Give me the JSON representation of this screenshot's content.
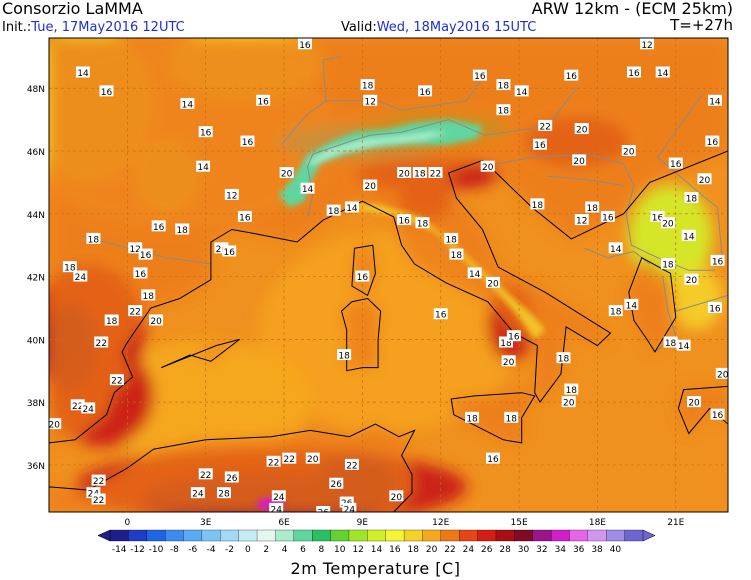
{
  "header": {
    "title": "Consorzio LaMMA",
    "model": "ARW 12km - (ECM 25km)",
    "init_label": "Init.:",
    "init_value": "Tue, 17May2016 12UTC",
    "valid_label": "Valid:",
    "valid_value": "Wed, 18May2016 15UTC",
    "lead": "T=+27h"
  },
  "axes": {
    "lat_labels": [
      "48N",
      "46N",
      "44N",
      "42N",
      "40N",
      "38N",
      "36N"
    ],
    "lon_labels": [
      "0",
      "3E",
      "6E",
      "9E",
      "12E",
      "15E",
      "18E",
      "21E"
    ]
  },
  "colorbar": {
    "title": "2m Temperature [C]",
    "ticks": [
      "-14",
      "-12",
      "-10",
      "-8",
      "-6",
      "-4",
      "-2",
      "0",
      "2",
      "4",
      "6",
      "8",
      "10",
      "12",
      "14",
      "16",
      "18",
      "20",
      "22",
      "24",
      "26",
      "28",
      "30",
      "32",
      "34",
      "36",
      "38",
      "40"
    ],
    "colors": [
      "#1e1e8c",
      "#1e3cc8",
      "#1e64e6",
      "#3c8cf0",
      "#5aaaf5",
      "#7cc3f7",
      "#a2d8f8",
      "#c6ebf5",
      "#e4f6ef",
      "#aaeccc",
      "#5fd6a0",
      "#28c060",
      "#64d232",
      "#a0e628",
      "#d2f028",
      "#f5f532",
      "#f5d228",
      "#f5aa1e",
      "#f07814",
      "#e64614",
      "#d21e14",
      "#aa0f14",
      "#820a28",
      "#9b148c",
      "#d21ec8",
      "#e664e6",
      "#d296f0",
      "#a08ce6",
      "#6e64d2"
    ],
    "value_range": [
      -14,
      40
    ]
  },
  "map": {
    "lon_range": [
      -3,
      23
    ],
    "lat_range": [
      34.5,
      49.6
    ],
    "colors": {
      "land_base": "#ec7a1a",
      "sea_base": "#f0901e",
      "alps_cold": "#aaeccc",
      "hot_core": "#c81414",
      "very_hot": "#8c0a32",
      "peak": "#d21ec8",
      "coast": "#000000",
      "border": "#8a8a8a",
      "grid": "#c07010"
    },
    "temperature_labels": [
      {
        "value": "16",
        "lon": 6.8,
        "lat": 49.4
      },
      {
        "value": "14",
        "lon": -1.7,
        "lat": 48.5
      },
      {
        "value": "16",
        "lon": -0.8,
        "lat": 47.9
      },
      {
        "value": "14",
        "lon": 2.3,
        "lat": 47.5
      },
      {
        "value": "16",
        "lon": 5.2,
        "lat": 47.6
      },
      {
        "value": "16",
        "lon": 3.0,
        "lat": 46.6
      },
      {
        "value": "16",
        "lon": 4.6,
        "lat": 46.3
      },
      {
        "value": "14",
        "lon": 2.9,
        "lat": 45.5
      },
      {
        "value": "20",
        "lon": 6.1,
        "lat": 45.3
      },
      {
        "value": "14",
        "lon": 6.9,
        "lat": 44.8
      },
      {
        "value": "12",
        "lon": 4.0,
        "lat": 44.6
      },
      {
        "value": "16",
        "lon": 4.5,
        "lat": 43.9
      },
      {
        "value": "16",
        "lon": 1.2,
        "lat": 43.6
      },
      {
        "value": "18",
        "lon": 2.1,
        "lat": 43.5
      },
      {
        "value": "18",
        "lon": -1.3,
        "lat": 43.2
      },
      {
        "value": "20",
        "lon": 3.6,
        "lat": 42.9
      },
      {
        "value": "16",
        "lon": 3.9,
        "lat": 42.8
      },
      {
        "value": "12",
        "lon": 0.3,
        "lat": 42.9
      },
      {
        "value": "16",
        "lon": 0.7,
        "lat": 42.7
      },
      {
        "value": "16",
        "lon": 0.5,
        "lat": 42.1
      },
      {
        "value": "24",
        "lon": -1.8,
        "lat": 42.0
      },
      {
        "value": "18",
        "lon": -2.2,
        "lat": 42.3
      },
      {
        "value": "18",
        "lon": 0.8,
        "lat": 41.4
      },
      {
        "value": "18",
        "lon": -0.6,
        "lat": 40.6
      },
      {
        "value": "22",
        "lon": 0.3,
        "lat": 40.9
      },
      {
        "value": "20",
        "lon": 1.1,
        "lat": 40.6
      },
      {
        "value": "22",
        "lon": -1.0,
        "lat": 39.9
      },
      {
        "value": "22",
        "lon": -0.4,
        "lat": 38.7
      },
      {
        "value": "22",
        "lon": -1.9,
        "lat": 37.9
      },
      {
        "value": "24",
        "lon": -1.5,
        "lat": 37.8
      },
      {
        "value": "20",
        "lon": -2.8,
        "lat": 37.3
      },
      {
        "value": "18",
        "lon": 9.2,
        "lat": 48.1
      },
      {
        "value": "12",
        "lon": 9.3,
        "lat": 47.6
      },
      {
        "value": "16",
        "lon": 11.4,
        "lat": 47.9
      },
      {
        "value": "16",
        "lon": 13.5,
        "lat": 48.4
      },
      {
        "value": "18",
        "lon": 14.4,
        "lat": 48.1
      },
      {
        "value": "16",
        "lon": 17.0,
        "lat": 48.4
      },
      {
        "value": "18",
        "lon": 14.4,
        "lat": 47.3
      },
      {
        "value": "14",
        "lon": 15.1,
        "lat": 47.9
      },
      {
        "value": "20",
        "lon": 17.4,
        "lat": 46.7
      },
      {
        "value": "20",
        "lon": 17.3,
        "lat": 45.7
      },
      {
        "value": "16",
        "lon": 15.8,
        "lat": 46.2
      },
      {
        "value": "20",
        "lon": 9.3,
        "lat": 44.9
      },
      {
        "value": "22",
        "lon": 11.8,
        "lat": 45.3
      },
      {
        "value": "18",
        "lon": 11.2,
        "lat": 45.3
      },
      {
        "value": "20",
        "lon": 10.6,
        "lat": 45.3
      },
      {
        "value": "18",
        "lon": 7.9,
        "lat": 44.1
      },
      {
        "value": "14",
        "lon": 8.6,
        "lat": 44.2
      },
      {
        "value": "16",
        "lon": 10.6,
        "lat": 43.8
      },
      {
        "value": "18",
        "lon": 11.3,
        "lat": 43.7
      },
      {
        "value": "18",
        "lon": 12.4,
        "lat": 43.2
      },
      {
        "value": "18",
        "lon": 12.6,
        "lat": 42.7
      },
      {
        "value": "16",
        "lon": 9.0,
        "lat": 42.0
      },
      {
        "value": "14",
        "lon": 13.3,
        "lat": 42.1
      },
      {
        "value": "16",
        "lon": 12.0,
        "lat": 40.8
      },
      {
        "value": "20",
        "lon": 14.0,
        "lat": 41.8
      },
      {
        "value": "18",
        "lon": 15.7,
        "lat": 44.3
      },
      {
        "value": "12",
        "lon": 17.4,
        "lat": 43.8
      },
      {
        "value": "18",
        "lon": 17.8,
        "lat": 44.2
      },
      {
        "value": "16",
        "lon": 18.4,
        "lat": 43.9
      },
      {
        "value": "14",
        "lon": 18.7,
        "lat": 42.9
      },
      {
        "value": "16",
        "lon": 20.3,
        "lat": 43.9
      },
      {
        "value": "14",
        "lon": 21.5,
        "lat": 43.3
      },
      {
        "value": "18",
        "lon": 20.7,
        "lat": 42.4
      },
      {
        "value": "16",
        "lon": 22.6,
        "lat": 42.5
      },
      {
        "value": "14",
        "lon": 19.3,
        "lat": 41.1
      },
      {
        "value": "20",
        "lon": 21.6,
        "lat": 41.9
      },
      {
        "value": "18",
        "lon": 18.7,
        "lat": 40.9
      },
      {
        "value": "20",
        "lon": 22.8,
        "lat": 38.9
      },
      {
        "value": "16",
        "lon": 22.5,
        "lat": 41.0
      },
      {
        "value": "18",
        "lon": 20.8,
        "lat": 39.9
      },
      {
        "value": "14",
        "lon": 21.3,
        "lat": 39.8
      },
      {
        "value": "20",
        "lon": 21.7,
        "lat": 38.0
      },
      {
        "value": "16",
        "lon": 22.6,
        "lat": 37.6
      },
      {
        "value": "18",
        "lon": 16.7,
        "lat": 39.4
      },
      {
        "value": "18",
        "lon": 17.0,
        "lat": 38.4
      },
      {
        "value": "20",
        "lon": 14.6,
        "lat": 39.3
      },
      {
        "value": "18",
        "lon": 14.7,
        "lat": 37.5
      },
      {
        "value": "20",
        "lon": 16.9,
        "lat": 38.0
      },
      {
        "value": "18",
        "lon": 14.5,
        "lat": 39.9
      },
      {
        "value": "16",
        "lon": 14.8,
        "lat": 40.1
      },
      {
        "value": "18",
        "lon": 8.3,
        "lat": 39.5
      },
      {
        "value": "18",
        "lon": 13.2,
        "lat": 37.5
      },
      {
        "value": "16",
        "lon": 14.0,
        "lat": 36.2
      },
      {
        "value": "22",
        "lon": 5.6,
        "lat": 36.1
      },
      {
        "value": "22",
        "lon": 6.2,
        "lat": 36.2
      },
      {
        "value": "20",
        "lon": 7.1,
        "lat": 36.2
      },
      {
        "value": "22",
        "lon": 8.6,
        "lat": 36.0
      },
      {
        "value": "26",
        "lon": 4.0,
        "lat": 35.6
      },
      {
        "value": "22",
        "lon": 3.0,
        "lat": 35.7
      },
      {
        "value": "24",
        "lon": 2.7,
        "lat": 35.1
      },
      {
        "value": "28",
        "lon": 3.7,
        "lat": 35.1
      },
      {
        "value": "24",
        "lon": 5.8,
        "lat": 35.0
      },
      {
        "value": "26",
        "lon": 8.0,
        "lat": 35.4
      },
      {
        "value": "26",
        "lon": 8.4,
        "lat": 34.8
      },
      {
        "value": "24",
        "lon": 8.5,
        "lat": 34.6
      },
      {
        "value": "22",
        "lon": -1.1,
        "lat": 35.5
      },
      {
        "value": "24",
        "lon": -1.3,
        "lat": 35.1
      },
      {
        "value": "22",
        "lon": -1.1,
        "lat": 34.9
      },
      {
        "value": "20",
        "lon": 10.3,
        "lat": 35.0
      },
      {
        "value": "24",
        "lon": 5.7,
        "lat": 34.6
      },
      {
        "value": "26",
        "lon": 7.5,
        "lat": 34.5
      },
      {
        "value": "12",
        "lon": 19.9,
        "lat": 49.4
      },
      {
        "value": "16",
        "lon": 19.4,
        "lat": 48.5
      },
      {
        "value": "14",
        "lon": 20.5,
        "lat": 48.5
      },
      {
        "value": "20",
        "lon": 20.7,
        "lat": 43.7
      },
      {
        "value": "14",
        "lon": 22.5,
        "lat": 47.6
      },
      {
        "value": "16",
        "lon": 22.4,
        "lat": 46.3
      },
      {
        "value": "20",
        "lon": 22.1,
        "lat": 45.1
      },
      {
        "value": "18",
        "lon": 21.6,
        "lat": 44.5
      },
      {
        "value": "16",
        "lon": 21.0,
        "lat": 45.6
      },
      {
        "value": "20",
        "lon": 19.2,
        "lat": 46.0
      },
      {
        "value": "22",
        "lon": 16.0,
        "lat": 46.8
      },
      {
        "value": "20",
        "lon": 13.8,
        "lat": 45.5
      }
    ]
  }
}
